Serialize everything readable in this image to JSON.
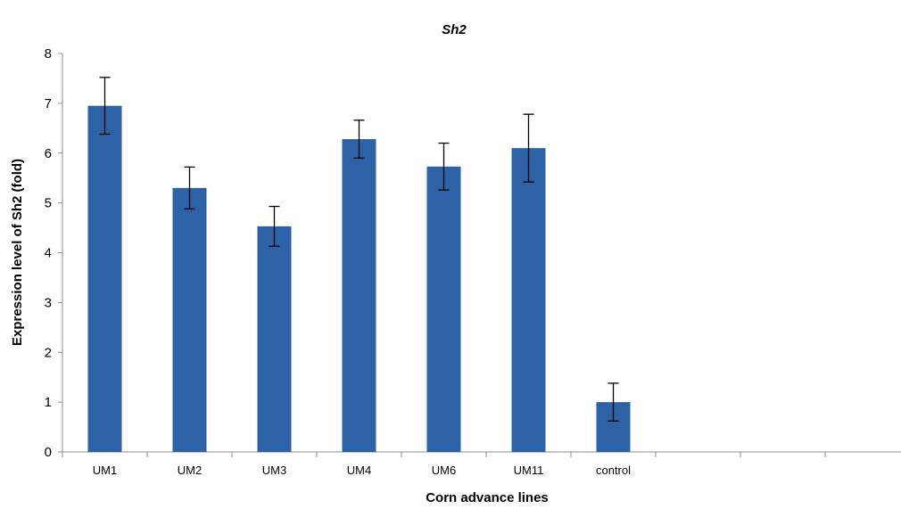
{
  "chart_data": {
    "type": "bar",
    "title": "Sh2",
    "xlabel": "Corn advance lines",
    "ylabel": "Expression level of Sh2 (fold)",
    "categories": [
      "UM1",
      "UM2",
      "UM3",
      "UM4",
      "UM6",
      "UM11",
      "control",
      "",
      ""
    ],
    "values": [
      6.95,
      5.3,
      4.53,
      6.28,
      5.73,
      6.1,
      1.0,
      null,
      null
    ],
    "error_bars": [
      0.57,
      0.42,
      0.4,
      0.38,
      0.47,
      0.68,
      0.38,
      null,
      null
    ],
    "ylim": [
      0,
      8
    ],
    "yticks": [
      0,
      1,
      2,
      3,
      4,
      5,
      6,
      7,
      8
    ],
    "grid": false,
    "legend": "none",
    "bar_color": "#2E62A6"
  }
}
